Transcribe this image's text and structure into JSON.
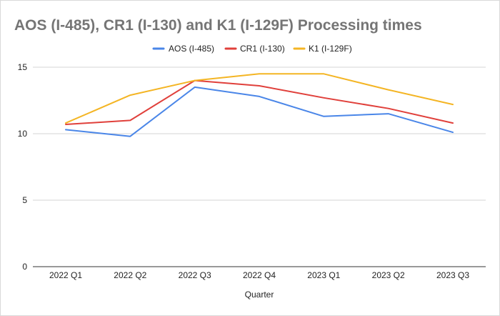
{
  "chart_data": {
    "type": "line",
    "title": "AOS (I-485), CR1 (I-130) and K1 (I-129F) Processing times",
    "xlabel": "Quarter",
    "ylabel": "",
    "categories": [
      "2022 Q1",
      "2022 Q2",
      "2022 Q3",
      "2022 Q4",
      "2023 Q1",
      "2023 Q2",
      "2023 Q3"
    ],
    "ylim": [
      0,
      15
    ],
    "yticks": [
      0,
      5,
      10,
      15
    ],
    "grid": true,
    "legend": "top",
    "series": [
      {
        "name": "AOS (I-485)",
        "color": "#4a86e8",
        "values": [
          10.3,
          9.8,
          13.5,
          12.8,
          11.3,
          11.5,
          10.1
        ]
      },
      {
        "name": "CR1 (I-130)",
        "color": "#e0403b",
        "values": [
          10.7,
          11.0,
          14.0,
          13.6,
          12.7,
          11.9,
          10.8
        ]
      },
      {
        "name": "K1 (I-129F)",
        "color": "#f4b524",
        "values": [
          10.8,
          12.9,
          14.0,
          14.5,
          14.5,
          13.3,
          12.2
        ]
      }
    ]
  }
}
